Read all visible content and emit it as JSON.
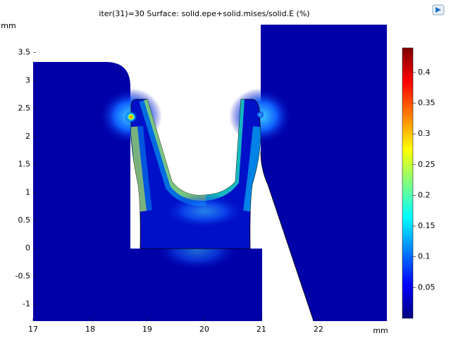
{
  "chart_data": {
    "type": "surface",
    "title": "iter(31)=30   Surface: solid.epe+solid.mises/solid.E (%)",
    "xlabel": "mm",
    "ylabel": "mm",
    "xlim": [
      17,
      23.2
    ],
    "ylim": [
      -1.3,
      4
    ],
    "xticks": [
      17,
      18,
      19,
      20,
      21,
      22
    ],
    "yticks": [
      -1,
      -0.5,
      0,
      0.5,
      1,
      1.5,
      2,
      2.5,
      3,
      3.5
    ],
    "clim": [
      0,
      0.44
    ],
    "cticks": [
      0.05,
      0.1,
      0.15,
      0.2,
      0.25,
      0.3,
      0.35,
      0.4
    ],
    "colormap": [
      "#00007f",
      "#0000ff",
      "#0080ff",
      "#00ffff",
      "#80ff80",
      "#ffff00",
      "#ff8000",
      "#ff0000",
      "#7f0000"
    ]
  }
}
